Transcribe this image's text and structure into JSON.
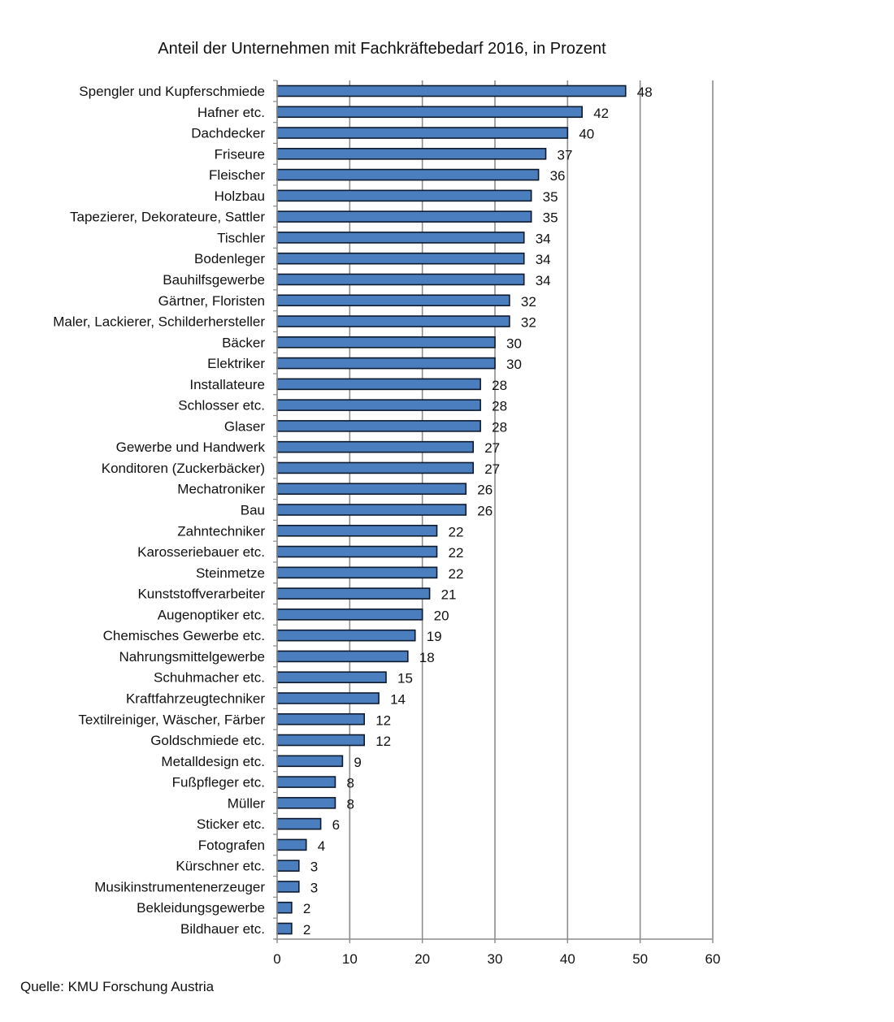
{
  "chart_data": {
    "type": "bar",
    "orientation": "horizontal",
    "title": "Anteil der Unternehmen mit Fachkräftebedarf 2016, in Prozent",
    "source": "Quelle: KMU Forschung Austria",
    "xlabel": "",
    "ylabel": "",
    "xlim": [
      0,
      60
    ],
    "xticks": [
      "0",
      "10",
      "20",
      "30",
      "40",
      "50",
      "60"
    ],
    "grid": true,
    "bar_color": "#4a7ebf",
    "bar_edge_color": "#0d1a2e",
    "categories": [
      "Spengler und Kupferschmiede",
      "Hafner etc.",
      "Dachdecker",
      "Friseure",
      "Fleischer",
      "Holzbau",
      "Tapezierer, Dekorateure, Sattler",
      "Tischler",
      "Bodenleger",
      "Bauhilfsgewerbe",
      "Gärtner, Floristen",
      "Maler, Lackierer, Schilderhersteller",
      "Bäcker",
      "Elektriker",
      "Installateure",
      "Schlosser etc.",
      "Glaser",
      "Gewerbe und Handwerk",
      "Konditoren (Zuckerbäcker)",
      "Mechatroniker",
      "Bau",
      "Zahntechniker",
      "Karosseriebauer etc.",
      "Steinmetze",
      "Kunststoffverarbeiter",
      "Augenoptiker etc.",
      "Chemisches Gewerbe etc.",
      "Nahrungsmittelgewerbe",
      "Schuhmacher etc.",
      "Kraftfahrzeugtechniker",
      "Textilreiniger, Wäscher, Färber",
      "Goldschmiede etc.",
      "Metalldesign etc.",
      "Fußpfleger etc.",
      "Müller",
      "Sticker etc.",
      "Fotografen",
      "Kürschner etc.",
      "Musikinstrumentenerzeuger",
      "Bekleidungsgewerbe",
      "Bildhauer etc."
    ],
    "values": [
      48,
      42,
      40,
      37,
      36,
      35,
      35,
      34,
      34,
      34,
      32,
      32,
      30,
      30,
      28,
      28,
      28,
      27,
      27,
      26,
      26,
      22,
      22,
      22,
      21,
      20,
      19,
      18,
      15,
      14,
      12,
      12,
      9,
      8,
      8,
      6,
      4,
      3,
      3,
      2,
      2
    ]
  }
}
